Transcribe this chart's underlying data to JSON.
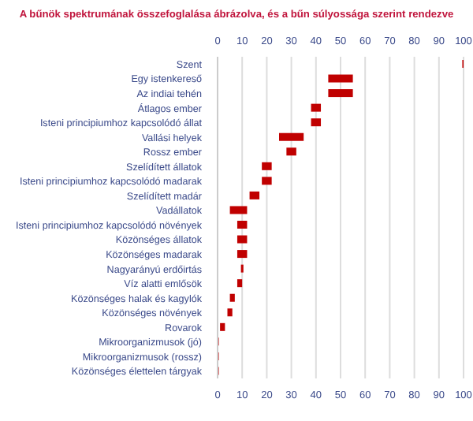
{
  "chart_data": {
    "type": "bar",
    "orientation": "horizontal",
    "title": "A bűnök spektrumának összefoglalása ábrázolva, és a bűn súlyossága szerint rendezve",
    "categories": [
      "Szent",
      "Egy istenkereső",
      "Az indiai tehén",
      "Átlagos ember",
      "Isteni principiumhoz kapcsolódó állat",
      "Vallási helyek",
      "Rossz ember",
      "Szelídített állatok",
      "Isteni principiumhoz kapcsolódó madarak",
      "Szelídített madár",
      "Vadállatok",
      "Isteni principiumhoz kapcsolódó növények",
      "Közönséges állatok",
      "Közönséges madarak",
      "Nagyarányú erdőirtás",
      "Víz alatti emlősök",
      "Közönséges halak és kagylók",
      "Közönséges növények",
      "Rovarok",
      "Mikroorganizmusok (jó)",
      "Mikroorganizmusok (rossz)",
      "Közönséges élettelen tárgyak"
    ],
    "base": [
      99.5,
      45,
      45,
      38,
      38,
      25,
      28,
      18,
      18,
      13,
      5,
      8,
      8,
      8,
      9.5,
      8,
      5,
      4,
      1,
      0,
      0,
      0
    ],
    "values": [
      0.5,
      10,
      10,
      4,
      4,
      10,
      4,
      4,
      4,
      4,
      7,
      4,
      4,
      4,
      1,
      2,
      2,
      2,
      2,
      0.5,
      0.5,
      0.5
    ],
    "color": "#c00000",
    "xlim": [
      0,
      100
    ],
    "xticks": [
      0,
      10,
      20,
      30,
      40,
      50,
      60,
      70,
      80,
      90,
      100
    ],
    "x2lim": [
      0,
      100
    ],
    "x2ticks": [
      0,
      10,
      20,
      30,
      40,
      50,
      60,
      70,
      80,
      90,
      100
    ],
    "grid": "x"
  }
}
